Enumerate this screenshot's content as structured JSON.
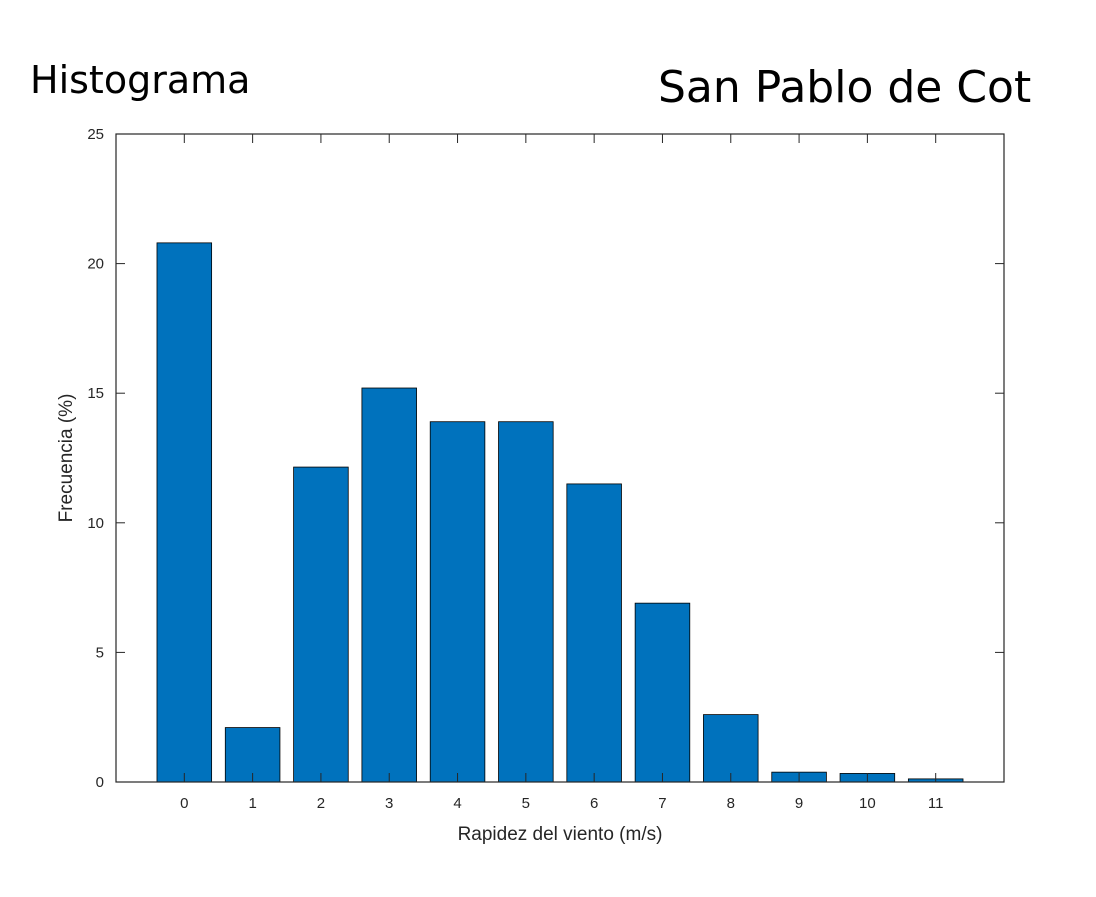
{
  "header": {
    "left_title": "Histograma",
    "right_title": "San Pablo de Cot"
  },
  "chart_data": {
    "type": "bar",
    "categories": [
      "0",
      "1",
      "2",
      "3",
      "4",
      "5",
      "6",
      "7",
      "8",
      "9",
      "10",
      "11"
    ],
    "values": [
      20.8,
      2.1,
      12.15,
      15.2,
      13.9,
      13.9,
      11.5,
      6.9,
      2.6,
      0.38,
      0.33,
      0.12
    ],
    "xlabel": "Rapidez del viento (m/s)",
    "ylabel": "Frecuencia (%)",
    "ylim": [
      0,
      25
    ],
    "xlim": [
      -1,
      12
    ],
    "yticks": [
      "0",
      "5",
      "10",
      "15",
      "20",
      "25"
    ],
    "grid": false,
    "bar_color": "#0072BD",
    "bar_edge_color": "#000000",
    "axis_color": "#262626"
  }
}
